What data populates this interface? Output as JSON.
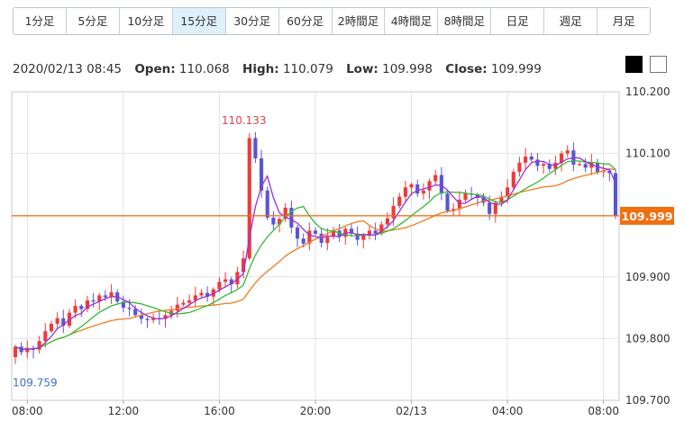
{
  "tabs": [
    {
      "label": "1分足",
      "active": false
    },
    {
      "label": "5分足",
      "active": false
    },
    {
      "label": "10分足",
      "active": false
    },
    {
      "label": "15分足",
      "active": true
    },
    {
      "label": "30分足",
      "active": false
    },
    {
      "label": "60分足",
      "active": false
    },
    {
      "label": "2時間足",
      "active": false
    },
    {
      "label": "4時間足",
      "active": false
    },
    {
      "label": "8時間足",
      "active": false
    },
    {
      "label": "日足",
      "active": false
    },
    {
      "label": "週足",
      "active": false
    },
    {
      "label": "月足",
      "active": false
    }
  ],
  "ohlc": {
    "datetime": "2020/02/13 08:45",
    "open_label": "Open:",
    "open": "110.068",
    "high_label": "High:",
    "high": "110.079",
    "low_label": "Low:",
    "low": "109.998",
    "close_label": "Close:",
    "close": "109.999"
  },
  "theme_swatches": [
    {
      "name": "black",
      "color": "#000000"
    },
    {
      "name": "white",
      "color": "#ffffff"
    }
  ],
  "chart_data": {
    "type": "candlestick",
    "interval": "15分足",
    "ylim": [
      109.7,
      110.2
    ],
    "y_ticks": [
      "110.200",
      "110.100",
      "110.000",
      "109.900",
      "109.800",
      "109.700"
    ],
    "x_ticks": [
      {
        "label": "08:00",
        "index": 2
      },
      {
        "label": "12:00",
        "index": 18
      },
      {
        "label": "16:00",
        "index": 34
      },
      {
        "label": "20:00",
        "index": 50
      },
      {
        "label": "02/13",
        "index": 66
      },
      {
        "label": "04:00",
        "index": 82
      },
      {
        "label": "08:00",
        "index": 98
      }
    ],
    "current_price": "109.999",
    "annotations": [
      {
        "text": "110.133",
        "type": "high",
        "index": 39,
        "value": 110.133
      },
      {
        "text": "109.759",
        "type": "low",
        "index": 0,
        "value": 109.759
      }
    ],
    "colors": {
      "up": "#ef3a3a",
      "down": "#5a55d6",
      "ma_fast": "#9b30d8",
      "ma_mid": "#33bb33",
      "ma_slow": "#f07a20",
      "price_line": "#f07010",
      "badge": "#f07010"
    },
    "closes": [
      109.787,
      109.778,
      109.785,
      109.782,
      109.796,
      109.812,
      109.824,
      109.833,
      109.821,
      109.842,
      109.853,
      109.848,
      109.862,
      109.86,
      109.87,
      109.867,
      109.875,
      109.86,
      109.85,
      109.848,
      109.838,
      109.832,
      109.83,
      109.833,
      109.832,
      109.838,
      109.845,
      109.855,
      109.858,
      109.862,
      109.87,
      109.874,
      109.868,
      109.88,
      109.892,
      109.896,
      109.888,
      109.908,
      109.93,
      110.125,
      110.092,
      110.04,
      109.996,
      109.985,
      109.994,
      110.012,
      109.98,
      109.962,
      109.954,
      109.975,
      109.97,
      109.955,
      109.965,
      109.975,
      109.965,
      109.978,
      109.97,
      109.96,
      109.967,
      109.975,
      109.97,
      109.985,
      109.995,
      110.015,
      110.03,
      110.045,
      110.05,
      110.035,
      110.04,
      110.055,
      110.065,
      110.035,
      110.007,
      110.01,
      110.025,
      110.035,
      110.033,
      110.028,
      110.02,
      110.002,
      110.02,
      110.03,
      110.045,
      110.07,
      110.085,
      110.095,
      110.09,
      110.08,
      110.083,
      110.075,
      110.085,
      110.1,
      110.105,
      110.082,
      110.083,
      110.077,
      110.085,
      110.07,
      110.072,
      110.068,
      109.999
    ]
  }
}
